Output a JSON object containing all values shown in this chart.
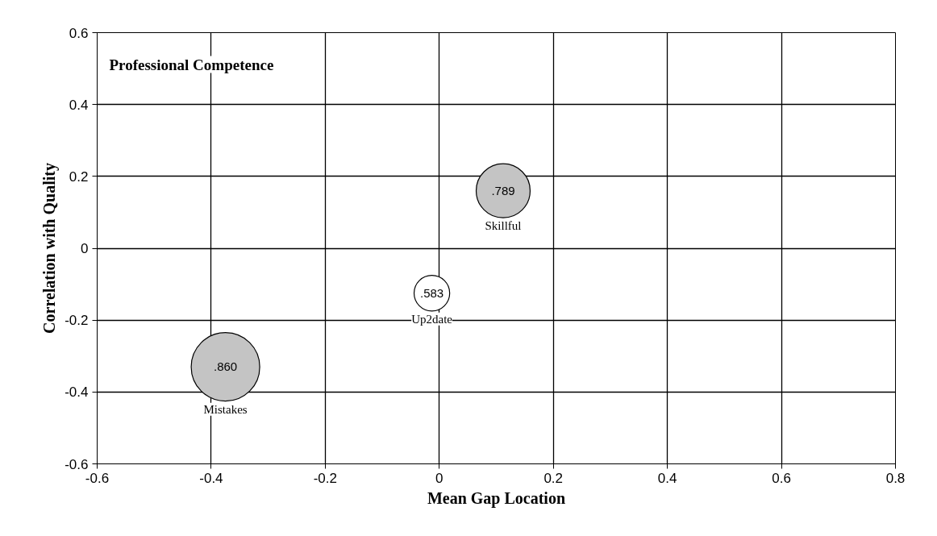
{
  "chart_data": {
    "type": "bubble",
    "xlabel": "Mean Gap Location",
    "ylabel": "Correlation with Quality",
    "xlim": [
      -0.6,
      0.8
    ],
    "ylim": [
      -0.6,
      0.6
    ],
    "xticks": [
      -0.6,
      -0.4,
      -0.2,
      0,
      0.2,
      0.4,
      0.6,
      0.8
    ],
    "yticks": [
      -0.6,
      -0.4,
      -0.2,
      0,
      0.2,
      0.4,
      0.6
    ],
    "grid": true,
    "series": [
      {
        "name": "Mistakes",
        "color": "#c4c4c4",
        "x": [
          -0.375
        ],
        "values": [
          -0.33
        ],
        "sizes": [
          1
        ]
      },
      {
        "name": "Up2date",
        "color": "#ffffff",
        "x": [
          -0.013
        ],
        "values": [
          -0.125
        ],
        "sizes": [
          0.27
        ]
      },
      {
        "name": "Skillful",
        "color": "#c4c4c4",
        "x": [
          0.112
        ],
        "values": [
          0.16
        ],
        "sizes": [
          0.62
        ]
      }
    ],
    "annotations": [
      "Professional Competence",
      {
        "text": ".860",
        "x": -0.375,
        "y": -0.33
      },
      {
        "text": ".583",
        "x": -0.013,
        "y": -0.125
      },
      {
        "text": ".789",
        "x": 0.112,
        "y": 0.16
      }
    ]
  }
}
